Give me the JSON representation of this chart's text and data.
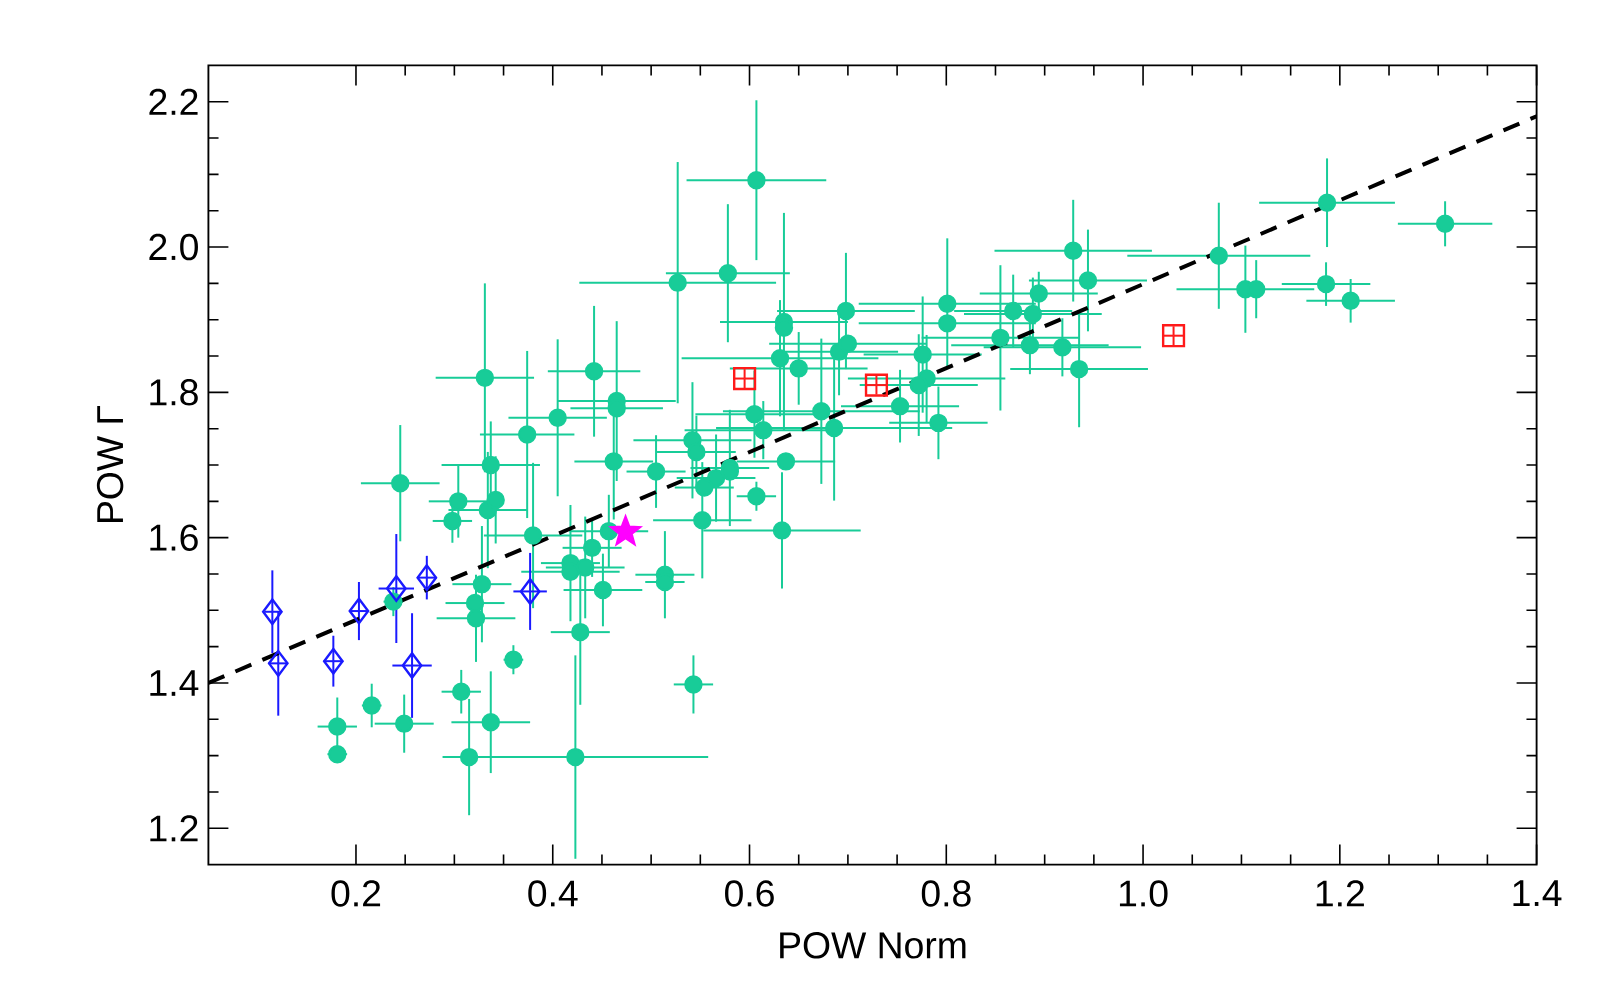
{
  "chart_data": {
    "type": "scatter",
    "xlabel": "POW Norm",
    "ylabel": "POW Γ",
    "xlim": [
      0.05,
      1.4
    ],
    "ylim": [
      1.15,
      2.25
    ],
    "xticks": [
      0.2,
      0.4,
      0.6,
      0.8,
      {
        "value": 1,
        "label": "1.0"
      },
      1.2,
      1.4
    ],
    "yticks": [
      1.2,
      1.4,
      1.6,
      1.8,
      {
        "value": 2,
        "label": "2.0"
      },
      2.2
    ],
    "series": [
      {
        "color": "#18cc98",
        "marker": "circle",
        "x": [
          0.331,
          0.374,
          0.405,
          0.442,
          0.465,
          0.465,
          0.527,
          0.607,
          0.578,
          0.635,
          0.635,
          0.631,
          0.65,
          0.698,
          0.7,
          0.691,
          0.776,
          0.801,
          0.801,
          0.78,
          0.772,
          0.753,
          0.792,
          0.855,
          0.868,
          0.888,
          0.894,
          0.885,
          0.918,
          0.929,
          0.944,
          0.935,
          0.673,
          0.686,
          0.605,
          0.614,
          0.542,
          1.077,
          1.104,
          1.115,
          1.187,
          1.186,
          1.211,
          1.307,
          0.337,
          0.245,
          0.304,
          0.342,
          0.334,
          0.298,
          0.38,
          0.328,
          0.321,
          0.322,
          0.418,
          0.418,
          0.433,
          0.44,
          0.451,
          0.428,
          0.457,
          0.462,
          0.505,
          0.514,
          0.514,
          0.36,
          0.307,
          0.337,
          0.249,
          0.216,
          0.181,
          0.181,
          0.315,
          0.423,
          0.238,
          0.546,
          0.554,
          0.566,
          0.58,
          0.58,
          0.637,
          0.607,
          0.552,
          0.633,
          0.543
        ],
        "values": [
          1.82,
          1.742,
          1.765,
          1.829,
          1.788,
          1.778,
          1.951,
          2.092,
          1.964,
          1.897,
          1.889,
          1.847,
          1.833,
          1.912,
          1.867,
          1.856,
          1.852,
          1.922,
          1.895,
          1.819,
          1.81,
          1.781,
          1.758,
          1.875,
          1.912,
          1.908,
          1.936,
          1.865,
          1.862,
          1.995,
          1.954,
          1.832,
          1.774,
          1.751,
          1.77,
          1.748,
          1.734,
          1.988,
          1.942,
          1.942,
          2.061,
          1.949,
          1.926,
          2.032,
          1.7,
          1.675,
          1.65,
          1.652,
          1.638,
          1.623,
          1.603,
          1.536,
          1.51,
          1.489,
          1.565,
          1.553,
          1.559,
          1.586,
          1.528,
          1.47,
          1.609,
          1.705,
          1.691,
          1.549,
          1.539,
          1.432,
          1.388,
          1.346,
          1.344,
          1.369,
          1.34,
          1.302,
          1.298,
          1.298,
          1.512,
          1.718,
          1.669,
          1.682,
          1.696,
          1.691,
          1.705,
          1.657,
          1.624,
          1.61,
          1.398
        ],
        "xerrors": [
          0.05,
          0.048,
          0.05,
          0.047,
          0.06,
          0.047,
          0.1,
          0.071,
          0.063,
          0.065,
          null,
          0.1,
          0.07,
          0.07,
          0.08,
          0.06,
          0.06,
          0.09,
          0.09,
          0.08,
          0.06,
          0.06,
          0.05,
          0.08,
          0.06,
          0.07,
          0.06,
          0.08,
          0.08,
          0.08,
          0.06,
          0.07,
          0.1,
          0.12,
          0.06,
          0.08,
          0.06,
          0.093,
          0.07,
          null,
          0.069,
          0.045,
          0.045,
          0.048,
          0.05,
          0.04,
          0.03,
          null,
          0.04,
          0.02,
          0.05,
          0.03,
          0.03,
          0.04,
          0.03,
          0.05,
          0.04,
          0.03,
          0.04,
          0.03,
          0.04,
          0.04,
          0.03,
          0.03,
          0.02,
          0.01,
          0.02,
          0.04,
          0.03,
          0.01,
          0.02,
          0.01,
          null,
          0.135,
          0.01,
          0.04,
          0.03,
          0.04,
          0.04,
          null,
          0.05,
          0.02,
          0.05,
          0.08,
          0.02
        ],
        "errors": [
          0.13,
          0.115,
          0.108,
          0.09,
          0.11,
          null,
          0.166,
          0.11,
          0.095,
          0.15,
          null,
          0.08,
          0.05,
          0.08,
          null,
          0.06,
          0.08,
          0.09,
          null,
          0.06,
          0.07,
          0.05,
          0.05,
          0.1,
          0.05,
          0.05,
          0.03,
          0.04,
          0.04,
          0.07,
          0.07,
          0.08,
          0.1,
          0.1,
          0.06,
          0.04,
          0.08,
          0.073,
          0.06,
          0.04,
          0.061,
          0.03,
          0.03,
          0.031,
          0.06,
          0.08,
          0.05,
          0.06,
          0.08,
          0.03,
          0.1,
          0.08,
          null,
          0.06,
          0.08,
          null,
          0.07,
          0.04,
          0.05,
          0.1,
          0.05,
          0.08,
          0.05,
          0.06,
          null,
          0.02,
          0.03,
          0.07,
          0.04,
          0.03,
          0.04,
          null,
          0.08,
          0.14,
          0.02,
          0.05,
          null,
          0.06,
          0.08,
          null,
          null,
          0.02,
          0.08,
          0.08,
          0.04
        ]
      },
      {
        "color": "#1a1aff",
        "marker": "diamond",
        "x": [
          0.115,
          0.121,
          0.177,
          0.203,
          0.241,
          0.272,
          0.257,
          0.377
        ],
        "values": [
          1.498,
          1.427,
          1.43,
          1.499,
          1.53,
          1.545,
          1.424,
          1.526
        ],
        "xerrors": [
          0.008,
          0.01,
          0.01,
          0.01,
          0.018,
          0.01,
          0.02,
          0.017
        ],
        "errors": [
          0.057,
          0.072,
          0.035,
          0.04,
          0.075,
          0.03,
          0.072,
          0.053
        ]
      },
      {
        "color": "#ff1a1a",
        "marker": "square",
        "x": [
          0.595,
          0.729,
          1.031
        ],
        "values": [
          1.819,
          1.81,
          1.878
        ],
        "xerrors": [
          0.01,
          0.01,
          0.01
        ],
        "errors": [
          0.013,
          0.013,
          0.013
        ]
      },
      {
        "color": "#ff00ff",
        "marker": "star",
        "x": [
          0.474
        ],
        "values": [
          1.608
        ]
      },
      {
        "type": "line",
        "color": "#000000",
        "line_style": "dashed",
        "marker": "none",
        "x": [
          0.05,
          1.4
        ],
        "values": [
          1.4,
          2.18
        ]
      }
    ]
  }
}
